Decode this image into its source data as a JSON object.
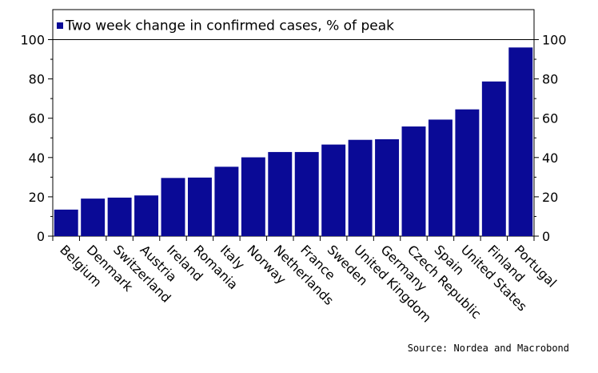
{
  "chart_data": {
    "type": "bar",
    "title": "",
    "legend": {
      "label": "Two week change in confirmed cases, % of peak",
      "position": "top-left"
    },
    "categories": [
      "Belgium",
      "Denmark",
      "Switzerland",
      "Austria",
      "Ireland",
      "Romania",
      "Italy",
      "Norway",
      "Netherlands",
      "France",
      "Sweden",
      "United Kingdom",
      "Germany",
      "Czech Republic",
      "Spain",
      "United States",
      "Finland",
      "Portugal"
    ],
    "series": [
      {
        "name": "Two week change in confirmed cases, % of peak",
        "values": [
          13.5,
          19.1,
          19.6,
          20.7,
          29.6,
          29.8,
          35.3,
          40.1,
          42.8,
          42.8,
          46.6,
          49.0,
          49.3,
          55.8,
          59.3,
          64.5,
          78.7,
          96.0
        ]
      }
    ],
    "ylim": [
      0,
      100
    ],
    "yticks": [
      0,
      20,
      40,
      60,
      80,
      100
    ],
    "y_axis_both_sides": true,
    "grid": false,
    "bar_color": "#0a0a96",
    "xlabel": "",
    "ylabel": ""
  },
  "source": "Source: Nordea and Macrobond"
}
